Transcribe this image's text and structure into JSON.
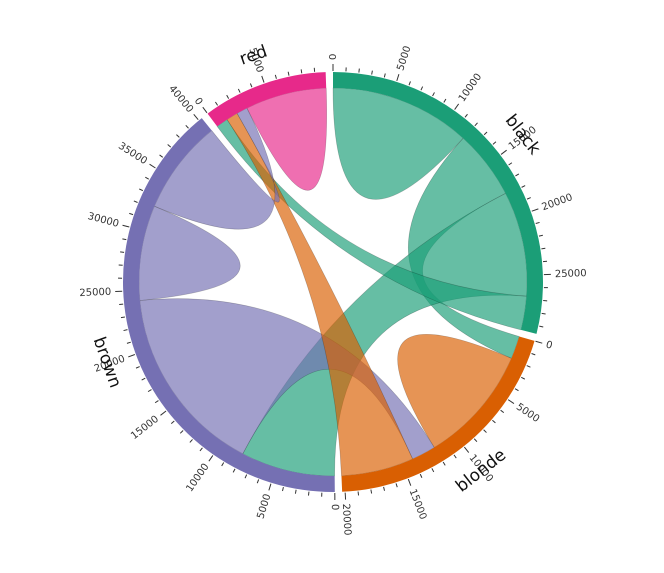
{
  "chart_data": {
    "type": "chord",
    "title": "",
    "groups": [
      {
        "name": "black",
        "color": "#1b9e77"
      },
      {
        "name": "blonde",
        "color": "#d95f02"
      },
      {
        "name": "brown",
        "color": "#7570b3"
      },
      {
        "name": "red",
        "color": "#e7298a"
      }
    ],
    "matrix": [
      [
        11975,
        5871,
        8916,
        2868
      ],
      [
        1951,
        10048,
        2060,
        6171
      ],
      [
        8010,
        16145,
        8090,
        8045
      ],
      [
        1013,
        990,
        940,
        6907
      ]
    ],
    "tick_step": 1000,
    "tick_label_step": 5000
  }
}
